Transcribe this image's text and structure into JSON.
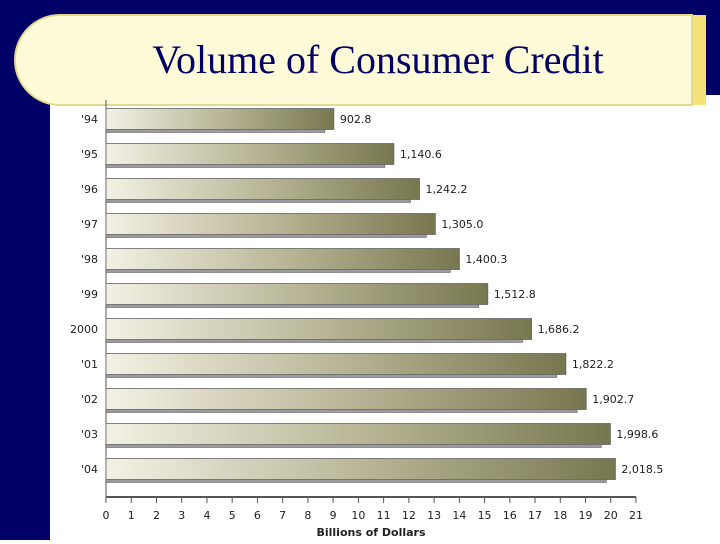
{
  "chart_data": {
    "type": "bar",
    "orientation": "horizontal",
    "title": "Volume of Consumer Credit",
    "xlabel": "Billions of Dollars",
    "categories": [
      "'94",
      "'95",
      "'96",
      "'97",
      "'98",
      "'99",
      "2000",
      "'01",
      "'02",
      "'03",
      "'04"
    ],
    "values": [
      9.028,
      11.406,
      12.422,
      13.05,
      14.003,
      15.128,
      16.862,
      18.222,
      19.027,
      19.986,
      20.185
    ],
    "value_labels": [
      "902.8",
      "1,140.6",
      "1,242.2",
      "1,305.0",
      "1,400.3",
      "1,512.8",
      "1,686.2",
      "1,822.2",
      "1,902.7",
      "1,998.6",
      "2,018.5"
    ],
    "color": "#77774f",
    "xlim": [
      0,
      21
    ],
    "xticks": [
      0,
      1,
      2,
      3,
      4,
      5,
      6,
      7,
      8,
      9,
      10,
      11,
      12,
      13,
      14,
      15,
      16,
      17,
      18,
      19,
      20,
      21
    ]
  }
}
